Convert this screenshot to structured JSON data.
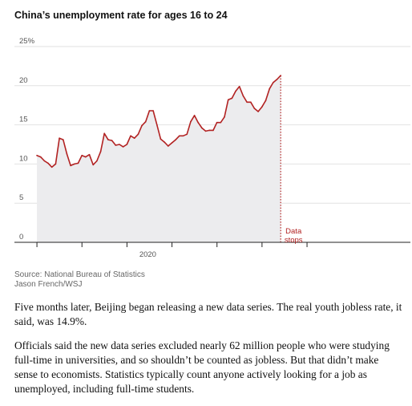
{
  "chart_data": {
    "type": "area",
    "title": "China’s unemployment rate for ages 16 to 24",
    "xlabel": "",
    "ylabel": "",
    "ylim": [
      0,
      25
    ],
    "yticks": [
      "0",
      "5",
      "10",
      "15",
      "20",
      "25%"
    ],
    "xticks": [
      "2020"
    ],
    "grid": true,
    "legend": "none",
    "series": [
      {
        "x": [
          "2018-01",
          "2018-02",
          "2018-03",
          "2018-04",
          "2018-05",
          "2018-06",
          "2018-07",
          "2018-08",
          "2018-09",
          "2018-10",
          "2018-11",
          "2018-12",
          "2019-01",
          "2019-02",
          "2019-03",
          "2019-04",
          "2019-05",
          "2019-06",
          "2019-07",
          "2019-08",
          "2019-09",
          "2019-10",
          "2019-11",
          "2019-12",
          "2020-01",
          "2020-02",
          "2020-03",
          "2020-04",
          "2020-05",
          "2020-06",
          "2020-07",
          "2020-08",
          "2020-09",
          "2020-10",
          "2020-11",
          "2020-12",
          "2021-01",
          "2021-02",
          "2021-03",
          "2021-04",
          "2021-05",
          "2021-06",
          "2021-07",
          "2021-08",
          "2021-09",
          "2021-10",
          "2021-11",
          "2021-12",
          "2022-01",
          "2022-02",
          "2022-03",
          "2022-04",
          "2022-05",
          "2022-06",
          "2022-07",
          "2022-08",
          "2022-09",
          "2022-10",
          "2022-11",
          "2022-12",
          "2023-01",
          "2023-02",
          "2023-03",
          "2023-04",
          "2023-05",
          "2023-06"
        ],
        "values": [
          11.1,
          10.9,
          10.4,
          10.1,
          9.6,
          10.0,
          13.3,
          13.1,
          11.3,
          9.8,
          10.0,
          10.1,
          11.1,
          10.9,
          11.2,
          9.9,
          10.4,
          11.6,
          13.9,
          13.1,
          13.0,
          12.4,
          12.5,
          12.2,
          12.5,
          13.6,
          13.3,
          13.8,
          14.9,
          15.4,
          16.8,
          16.8,
          15.0,
          13.2,
          12.8,
          12.3,
          12.7,
          13.1,
          13.6,
          13.6,
          13.8,
          15.4,
          16.2,
          15.3,
          14.6,
          14.2,
          14.3,
          14.3,
          15.3,
          15.3,
          16.0,
          18.2,
          18.4,
          19.3,
          19.9,
          18.7,
          17.9,
          17.9,
          17.1,
          16.7,
          17.3,
          18.1,
          19.6,
          20.4,
          20.8,
          21.3
        ]
      }
    ],
    "annotation": {
      "lines": [
        "Data",
        "stops"
      ],
      "x": "2023-06"
    },
    "colors": {
      "line": "#b22222",
      "fill": "#ececee",
      "grid": "#e2e2e2",
      "axis": "#222222"
    }
  },
  "source": {
    "line1": "Source: National Bureau of Statistics",
    "line2": "Jason French/WSJ"
  },
  "article": {
    "p1": "Five months later, Beijing began releasing a new data series. The real youth jobless rate, it said, was 14.9%.",
    "p2": "Officials said the new data series excluded nearly 62 million people who were studying full-time in universities, and so shouldn’t be counted as jobless. But that didn’t make sense to economists. Statistics typically count anyone actively looking for a job as unemployed, including full-time students."
  }
}
